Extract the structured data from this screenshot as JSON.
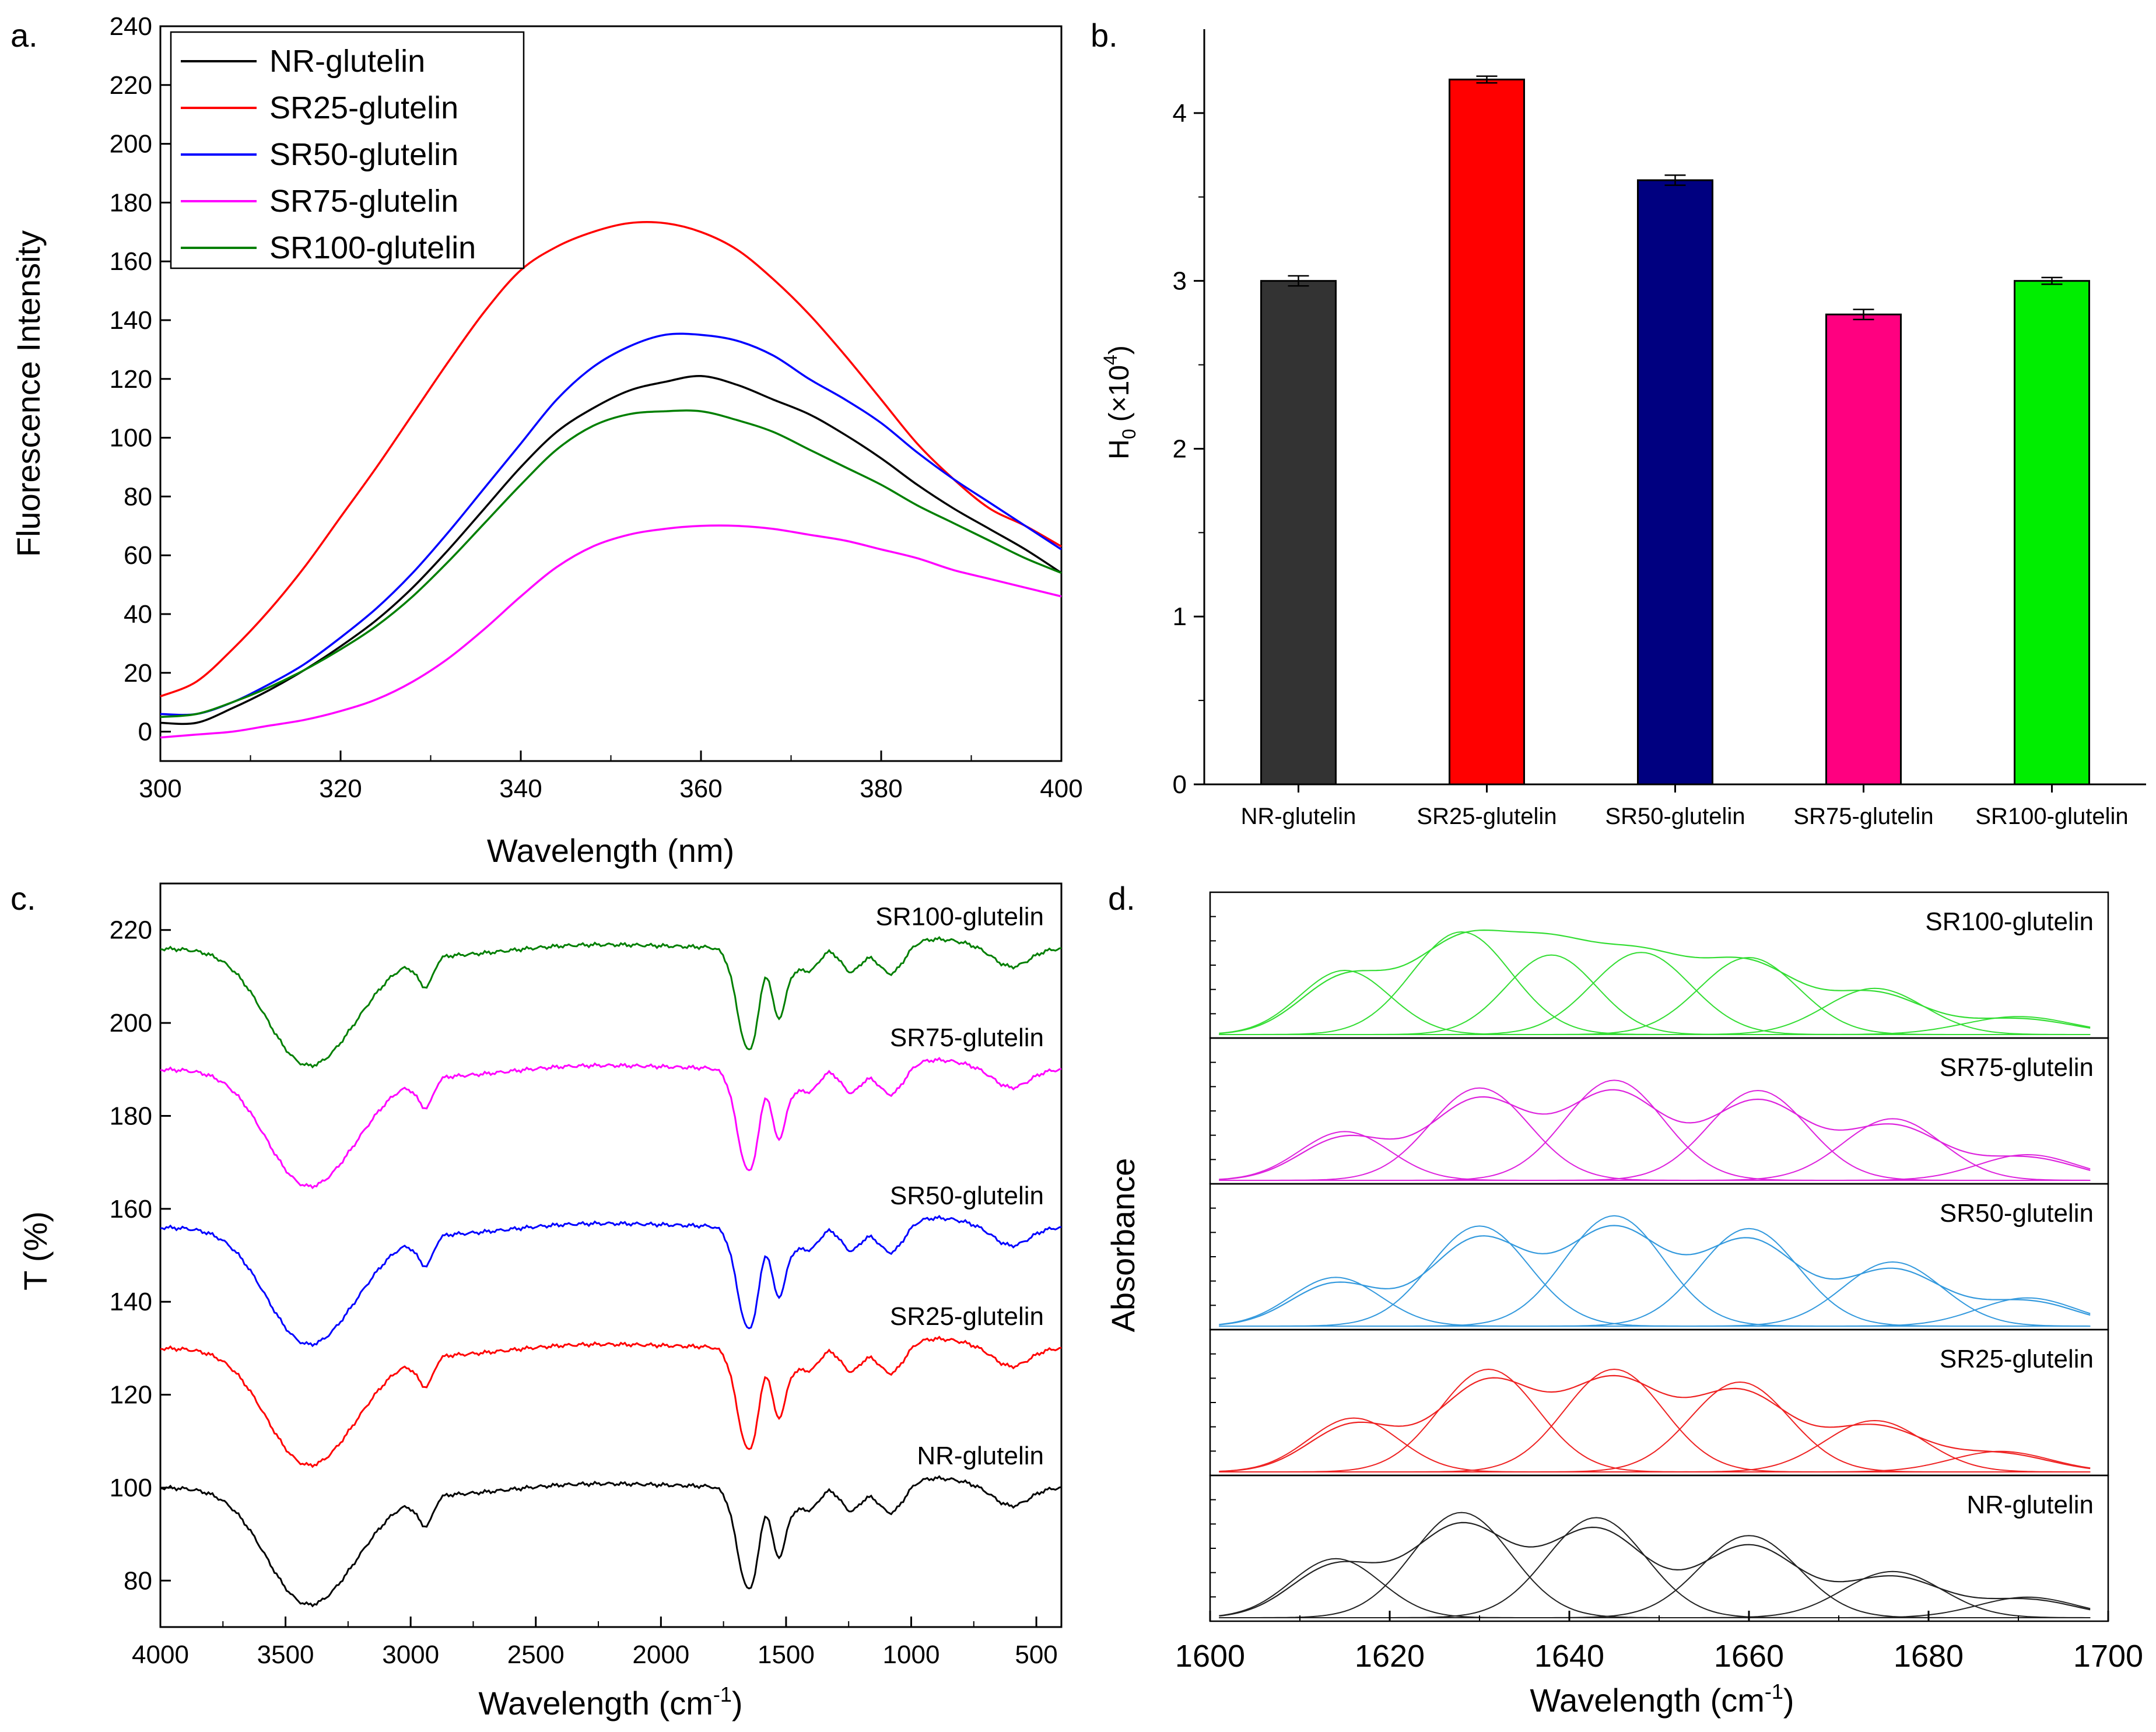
{
  "chart_data": [
    {
      "panel_label": "a.",
      "type": "line",
      "xlabel": "Wavelength (nm)",
      "ylabel": "Fluorescence Intensity",
      "xlim": [
        300,
        400
      ],
      "ylim": [
        -10,
        240
      ],
      "xticks": [
        "300",
        "320",
        "340",
        "360",
        "380",
        "400"
      ],
      "yticks": [
        "0",
        "20",
        "40",
        "60",
        "80",
        "100",
        "120",
        "140",
        "160",
        "180",
        "200",
        "220",
        "240"
      ],
      "legend_position": "top-left",
      "series": [
        {
          "name": "NR-glutelin",
          "color": "#000000",
          "x": [
            300,
            304,
            308,
            312,
            316,
            320,
            324,
            328,
            332,
            336,
            340,
            344,
            348,
            352,
            356,
            360,
            364,
            368,
            372,
            376,
            380,
            384,
            388,
            392,
            396,
            400
          ],
          "values": [
            3,
            3,
            8,
            14,
            21,
            29,
            38,
            49,
            62,
            76,
            90,
            102,
            110,
            116,
            119,
            121,
            118,
            113,
            108,
            101,
            93,
            84,
            76,
            69,
            62,
            54
          ]
        },
        {
          "name": "SR25-glutelin",
          "color": "#ff0000",
          "x": [
            300,
            304,
            308,
            312,
            316,
            320,
            324,
            328,
            332,
            336,
            340,
            344,
            348,
            352,
            356,
            360,
            364,
            368,
            372,
            376,
            380,
            384,
            388,
            392,
            396,
            400
          ],
          "values": [
            12,
            17,
            28,
            41,
            56,
            73,
            90,
            108,
            126,
            143,
            157,
            165,
            170,
            173,
            173,
            170,
            164,
            154,
            142,
            128,
            113,
            98,
            86,
            76,
            70,
            63
          ]
        },
        {
          "name": "SR50-glutelin",
          "color": "#0000ff",
          "x": [
            300,
            304,
            308,
            312,
            316,
            320,
            324,
            328,
            332,
            336,
            340,
            344,
            348,
            352,
            356,
            360,
            364,
            368,
            372,
            376,
            380,
            384,
            388,
            392,
            396,
            400
          ],
          "values": [
            6,
            6,
            10,
            16,
            23,
            32,
            42,
            54,
            68,
            83,
            98,
            113,
            124,
            131,
            135,
            135,
            133,
            128,
            120,
            113,
            105,
            95,
            86,
            78,
            70,
            62
          ]
        },
        {
          "name": "SR75-glutelin",
          "color": "#ff00ff",
          "x": [
            300,
            304,
            308,
            312,
            316,
            320,
            324,
            328,
            332,
            336,
            340,
            344,
            348,
            352,
            356,
            360,
            364,
            368,
            372,
            376,
            380,
            384,
            388,
            392,
            396,
            400
          ],
          "values": [
            -2,
            -1,
            0,
            2,
            4,
            7,
            11,
            17,
            25,
            35,
            46,
            56,
            63,
            67,
            69,
            70,
            70,
            69,
            67,
            65,
            62,
            59,
            55,
            52,
            49,
            46
          ]
        },
        {
          "name": "SR100-glutelin",
          "color": "#007f00",
          "x": [
            300,
            304,
            308,
            312,
            316,
            320,
            324,
            328,
            332,
            336,
            340,
            344,
            348,
            352,
            356,
            360,
            364,
            368,
            372,
            376,
            380,
            384,
            388,
            392,
            396,
            400
          ],
          "values": [
            5,
            6,
            10,
            15,
            21,
            28,
            36,
            46,
            58,
            71,
            84,
            96,
            104,
            108,
            109,
            109,
            106,
            102,
            96,
            90,
            84,
            77,
            71,
            65,
            59,
            54
          ]
        }
      ]
    },
    {
      "panel_label": "b.",
      "type": "bar",
      "ylabel_main": "H",
      "ylabel_sub": "0",
      "ylabel_unit": "(×10",
      "ylabel_exp": "4",
      "ylabel_close": ")",
      "ylim": [
        0,
        4.5
      ],
      "yticks": [
        "0",
        "1",
        "2",
        "3",
        "4"
      ],
      "categories": [
        "NR-glutelin",
        "SR25-glutelin",
        "SR50-glutelin",
        "SR75-glutelin",
        "SR100-glutelin"
      ],
      "values": [
        3.0,
        4.2,
        3.6,
        2.8,
        3.0
      ],
      "errors": [
        0.03,
        0.02,
        0.03,
        0.03,
        0.02
      ],
      "colors": [
        "#333333",
        "#ff0000",
        "#000080",
        "#ff0080",
        "#00ee00"
      ]
    },
    {
      "panel_label": "c.",
      "type": "line",
      "xlabel_main": "Wavelength (cm",
      "xlabel_exp": "-1",
      "xlabel_close": ")",
      "ylabel": "T (%)",
      "xlim": [
        4000,
        400
      ],
      "ylim": [
        70,
        230
      ],
      "xticks": [
        "4000",
        "3500",
        "3000",
        "2500",
        "2000",
        "1500",
        "1000",
        "500"
      ],
      "yticks": [
        "80",
        "100",
        "120",
        "140",
        "160",
        "180",
        "200",
        "220"
      ],
      "series": [
        {
          "name": "NR-glutelin",
          "color": "#000000",
          "offset": 0
        },
        {
          "name": "SR25-glutelin",
          "color": "#ff0000",
          "offset": 30
        },
        {
          "name": "SR50-glutelin",
          "color": "#0000ff",
          "offset": 56
        },
        {
          "name": "SR75-glutelin",
          "color": "#ff00ff",
          "offset": 90
        },
        {
          "name": "SR100-glutelin",
          "color": "#007f00",
          "offset": 116
        }
      ]
    },
    {
      "panel_label": "d.",
      "type": "line",
      "xlabel_main": "Wavelength (cm",
      "xlabel_exp": "-1",
      "xlabel_close": ")",
      "ylabel": "Absorbance",
      "xlim": [
        1600,
        1700
      ],
      "xticks": [
        "1600",
        "1620",
        "1640",
        "1660",
        "1680",
        "1700"
      ],
      "panels": [
        {
          "name": "SR100-glutelin",
          "color": "#33dd33",
          "peaks": [
            {
              "c": 1615,
              "a": 0.5,
              "w": 5
            },
            {
              "c": 1628,
              "a": 0.8,
              "w": 5.5
            },
            {
              "c": 1638,
              "a": 0.62,
              "w": 5
            },
            {
              "c": 1648,
              "a": 0.64,
              "w": 5.5
            },
            {
              "c": 1660,
              "a": 0.6,
              "w": 5.5
            },
            {
              "c": 1674,
              "a": 0.36,
              "w": 5.5
            },
            {
              "c": 1690,
              "a": 0.14,
              "w": 6
            }
          ]
        },
        {
          "name": "SR75-glutelin",
          "color": "#dd22dd",
          "peaks": [
            {
              "c": 1615,
              "a": 0.38,
              "w": 5
            },
            {
              "c": 1630,
              "a": 0.72,
              "w": 5.5
            },
            {
              "c": 1645,
              "a": 0.78,
              "w": 5.5
            },
            {
              "c": 1661,
              "a": 0.7,
              "w": 5.5
            },
            {
              "c": 1676,
              "a": 0.48,
              "w": 5.5
            },
            {
              "c": 1691,
              "a": 0.2,
              "w": 5.5
            }
          ]
        },
        {
          "name": "SR50-glutelin",
          "color": "#3399dd",
          "peaks": [
            {
              "c": 1614,
              "a": 0.38,
              "w": 5
            },
            {
              "c": 1630,
              "a": 0.78,
              "w": 5.5
            },
            {
              "c": 1645,
              "a": 0.86,
              "w": 5.5
            },
            {
              "c": 1660,
              "a": 0.76,
              "w": 5.5
            },
            {
              "c": 1676,
              "a": 0.5,
              "w": 5.5
            },
            {
              "c": 1691,
              "a": 0.22,
              "w": 5.5
            }
          ]
        },
        {
          "name": "SR25-glutelin",
          "color": "#ee2222",
          "peaks": [
            {
              "c": 1616,
              "a": 0.42,
              "w": 5
            },
            {
              "c": 1631,
              "a": 0.8,
              "w": 5.5
            },
            {
              "c": 1645,
              "a": 0.8,
              "w": 5.5
            },
            {
              "c": 1659,
              "a": 0.7,
              "w": 5.5
            },
            {
              "c": 1674,
              "a": 0.4,
              "w": 5.5
            },
            {
              "c": 1688,
              "a": 0.16,
              "w": 5.5
            }
          ]
        },
        {
          "name": "NR-glutelin",
          "color": "#222222",
          "peaks": [
            {
              "c": 1614,
              "a": 0.46,
              "w": 5
            },
            {
              "c": 1628,
              "a": 0.82,
              "w": 5.5
            },
            {
              "c": 1643,
              "a": 0.78,
              "w": 5.5
            },
            {
              "c": 1660,
              "a": 0.64,
              "w": 5.5
            },
            {
              "c": 1676,
              "a": 0.36,
              "w": 5.5
            },
            {
              "c": 1691,
              "a": 0.16,
              "w": 5.5
            }
          ]
        }
      ]
    }
  ]
}
